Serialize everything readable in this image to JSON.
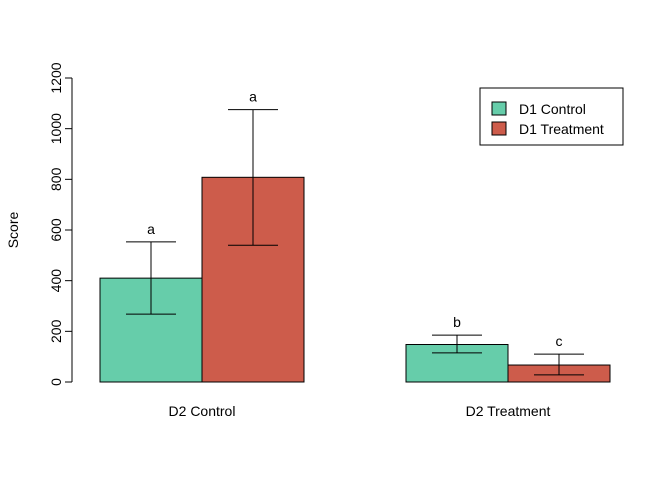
{
  "chart_data": {
    "type": "bar",
    "ylabel": "Score",
    "ylim": [
      0,
      1200
    ],
    "yticks": [
      0,
      200,
      400,
      600,
      800,
      1000,
      1200
    ],
    "categories": [
      "D2 Control",
      "D2 Treatment"
    ],
    "series": [
      {
        "name": "D1 Control",
        "color": "#66cdaa",
        "values": [
          410,
          148
        ],
        "err_low": [
          268,
          115
        ],
        "err_high": [
          553,
          185
        ],
        "labels": [
          "a",
          "b"
        ]
      },
      {
        "name": "D1 Treatment",
        "color": "#cd5c4b",
        "values": [
          808,
          67
        ],
        "err_low": [
          540,
          28
        ],
        "err_high": [
          1075,
          110
        ],
        "labels": [
          "a",
          "c"
        ]
      }
    ],
    "legend_position": "top-right",
    "grid": false
  }
}
